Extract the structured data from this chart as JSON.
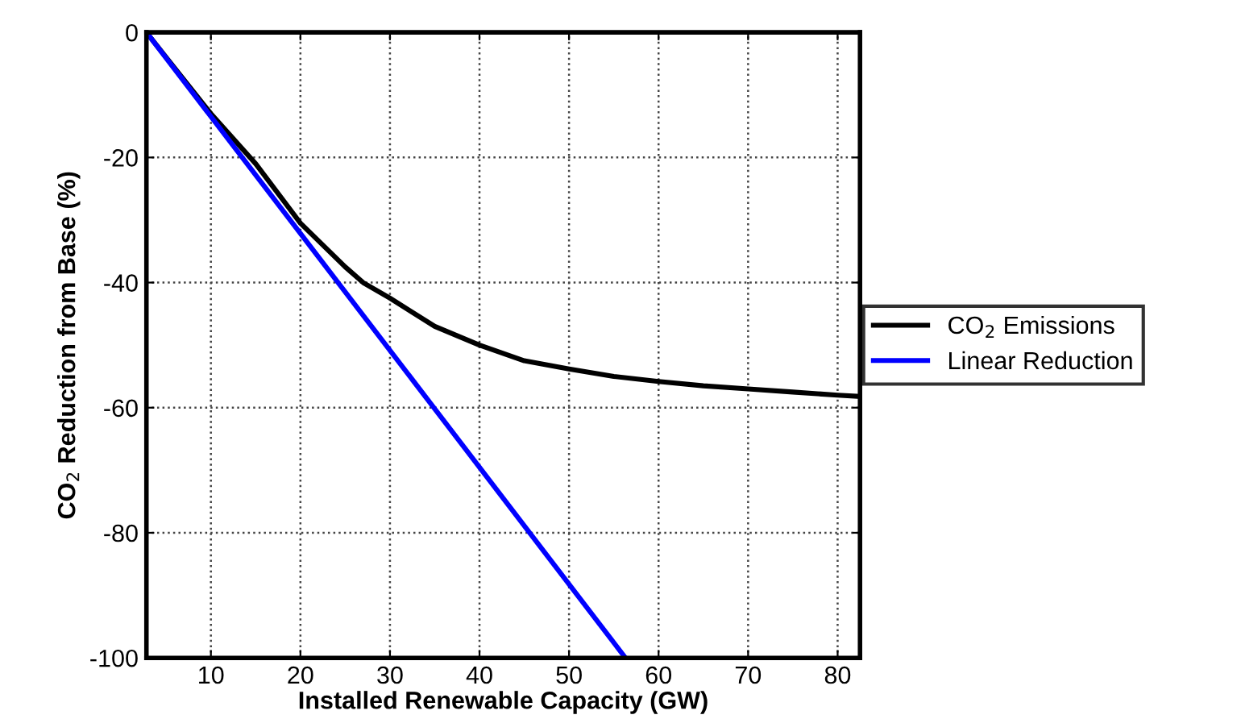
{
  "chart_data": {
    "type": "line",
    "xlabel": "Installed Renewable Capacity (GW)",
    "ylabel": "CO$_{2}$ Reduction from Base (%)",
    "xlim": [
      2.8,
      82.5
    ],
    "ylim": [
      -100,
      0
    ],
    "xticks": [
      10,
      20,
      30,
      40,
      50,
      60,
      70,
      80
    ],
    "yticks": [
      -100,
      -80,
      -60,
      -40,
      -20,
      0
    ],
    "grid": true,
    "legend": "right",
    "line_style": "solid",
    "series": [
      {
        "name": "CO$_{2}$ Emissions",
        "color": "#000000",
        "x": [
          2.8,
          5,
          10,
          15,
          20,
          25,
          27,
          30,
          35,
          40,
          45,
          50,
          55,
          60,
          65,
          70,
          75,
          80,
          82.5
        ],
        "values": [
          0,
          -4,
          -13,
          -21,
          -30.5,
          -37.5,
          -40,
          -42.5,
          -47,
          -50,
          -52.5,
          -53.8,
          -55,
          -55.8,
          -56.5,
          -57,
          -57.5,
          -58,
          -58.2
        ]
      },
      {
        "name": "Linear Reduction",
        "color": "#0000ff",
        "x": [
          2.8,
          56.3
        ],
        "values": [
          0,
          -100
        ]
      }
    ]
  }
}
